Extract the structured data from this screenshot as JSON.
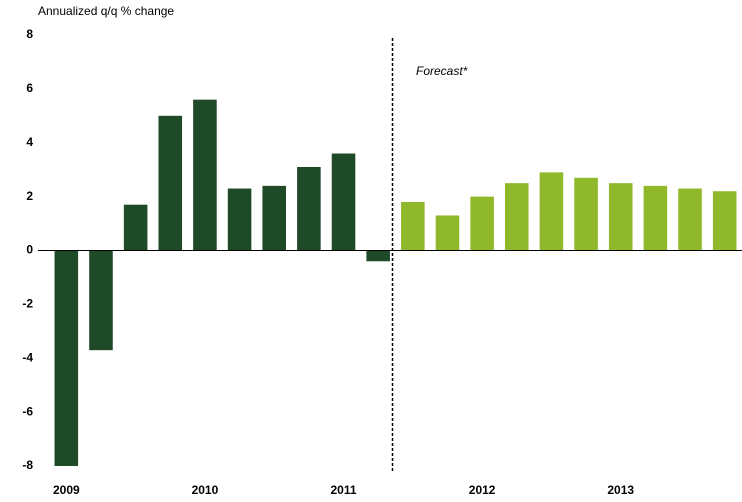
{
  "chart_data": {
    "type": "bar",
    "title": "Annualized q/q % change",
    "annotation": "Forecast*",
    "categories": [
      "2009",
      null,
      null,
      null,
      "2010",
      null,
      null,
      null,
      "2011",
      null,
      null,
      null,
      "2012",
      null,
      null,
      null,
      "2013",
      null,
      null,
      null
    ],
    "values": [
      -8.0,
      -3.7,
      1.7,
      5.0,
      5.6,
      2.3,
      2.4,
      3.1,
      3.6,
      -0.4,
      1.8,
      1.3,
      2.0,
      2.5,
      2.9,
      2.7,
      2.5,
      2.4,
      2.3,
      2.2
    ],
    "colors": [
      "#1e4a28",
      "#1e4a28",
      "#1e4a28",
      "#1e4a28",
      "#1e4a28",
      "#1e4a28",
      "#1e4a28",
      "#1e4a28",
      "#1e4a28",
      "#1e4a28",
      "#8fb82a",
      "#8fb82a",
      "#8fb82a",
      "#8fb82a",
      "#8fb82a",
      "#8fb82a",
      "#8fb82a",
      "#8fb82a",
      "#8fb82a",
      "#8fb82a"
    ],
    "ylim": [
      -8,
      8
    ],
    "yticks": [
      -8,
      -6,
      -4,
      -2,
      0,
      2,
      4,
      6,
      8
    ],
    "grid": false
  }
}
